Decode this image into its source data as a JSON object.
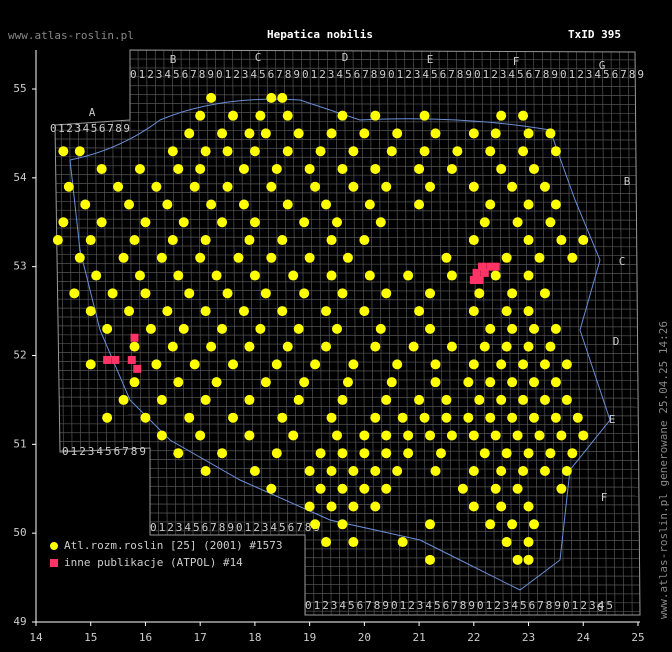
{
  "header": {
    "site": "www.atlas-roslin.pl",
    "title": "Hepatica nobilis",
    "taxon_id": "TxID 395",
    "footer": "www.atlas-roslin.pl generowane 25.04.25 14:26"
  },
  "grid_labels": {
    "letters": [
      "A",
      "B",
      "C",
      "D",
      "E",
      "F",
      "G"
    ],
    "digits": "0123456789",
    "digits_short": "012345"
  },
  "chart_data": {
    "type": "scatter",
    "xlim": [
      14,
      25
    ],
    "ylim": [
      49,
      55.5
    ],
    "xticks": [
      14,
      15,
      16,
      17,
      18,
      19,
      20,
      21,
      22,
      23,
      24,
      25
    ],
    "yticks": [
      49,
      50,
      51,
      52,
      53,
      54,
      55
    ],
    "series": [
      {
        "name": "Atl.rozm.roslin [25] (2001) #1573",
        "color": "#ffff00",
        "rows": [
          {
            "lat": 54.9,
            "lon": [
              17.2,
              18.3,
              18.5
            ]
          },
          {
            "lat": 54.7,
            "lon": [
              17.0,
              17.6,
              18.1,
              18.6,
              19.6,
              20.2,
              21.1,
              22.5,
              22.9
            ]
          },
          {
            "lat": 54.5,
            "lon": [
              16.8,
              17.4,
              17.9,
              18.2,
              18.8,
              19.4,
              20.0,
              20.6,
              21.3,
              22.0,
              22.4,
              23.0,
              23.4
            ]
          },
          {
            "lat": 54.3,
            "lon": [
              14.5,
              14.8,
              16.5,
              17.1,
              17.5,
              18.0,
              18.6,
              19.2,
              19.8,
              20.5,
              21.1,
              21.7,
              22.3,
              22.9,
              23.5
            ]
          },
          {
            "lat": 54.1,
            "lon": [
              15.2,
              15.9,
              16.6,
              17.0,
              17.8,
              18.4,
              19.0,
              19.6,
              20.2,
              21.0,
              21.6,
              22.5,
              23.1
            ]
          },
          {
            "lat": 53.9,
            "lon": [
              14.6,
              15.5,
              16.2,
              16.9,
              17.5,
              18.3,
              19.1,
              19.8,
              20.4,
              21.2,
              22.0,
              22.7,
              23.3
            ]
          },
          {
            "lat": 53.7,
            "lon": [
              14.9,
              15.7,
              16.4,
              17.2,
              17.8,
              18.6,
              19.3,
              20.1,
              21.0,
              22.3,
              23.0,
              23.5
            ]
          },
          {
            "lat": 53.5,
            "lon": [
              14.5,
              15.2,
              16.0,
              16.7,
              17.4,
              18.0,
              18.9,
              19.5,
              20.3,
              22.2,
              22.8,
              23.4
            ]
          },
          {
            "lat": 53.3,
            "lon": [
              14.4,
              15.0,
              15.8,
              16.5,
              17.1,
              17.9,
              18.5,
              19.4,
              20.0,
              22.0,
              23.0,
              23.6,
              24.0
            ]
          },
          {
            "lat": 53.1,
            "lon": [
              14.8,
              15.6,
              16.3,
              17.0,
              17.7,
              18.3,
              19.0,
              19.7,
              21.5,
              22.6,
              23.2,
              23.8
            ]
          },
          {
            "lat": 52.9,
            "lon": [
              15.1,
              15.9,
              16.6,
              17.3,
              18.0,
              18.7,
              19.4,
              20.1,
              20.8,
              21.6,
              22.4,
              23.0
            ]
          },
          {
            "lat": 52.7,
            "lon": [
              14.7,
              15.4,
              16.0,
              16.8,
              17.5,
              18.2,
              18.9,
              19.6,
              20.4,
              21.2,
              22.1,
              22.7,
              23.3
            ]
          },
          {
            "lat": 52.5,
            "lon": [
              15.0,
              15.7,
              16.4,
              17.1,
              17.8,
              18.5,
              19.3,
              20.0,
              21.0,
              22.0,
              22.6,
              23.0
            ]
          },
          {
            "lat": 52.3,
            "lon": [
              15.3,
              16.1,
              16.7,
              17.4,
              18.1,
              18.8,
              19.5,
              20.3,
              21.2,
              22.3,
              22.7,
              23.1,
              23.5
            ]
          },
          {
            "lat": 52.1,
            "lon": [
              15.8,
              16.5,
              17.2,
              17.9,
              18.6,
              19.3,
              20.2,
              20.9,
              21.6,
              22.2,
              22.6,
              23.0,
              23.4
            ]
          },
          {
            "lat": 51.9,
            "lon": [
              15.0,
              16.2,
              16.9,
              17.6,
              18.4,
              19.1,
              19.8,
              20.6,
              21.3,
              22.0,
              22.5,
              22.9,
              23.3,
              23.7
            ]
          },
          {
            "lat": 51.7,
            "lon": [
              15.8,
              16.6,
              17.3,
              18.2,
              18.9,
              19.7,
              20.5,
              21.3,
              21.9,
              22.3,
              22.7,
              23.1,
              23.5
            ]
          },
          {
            "lat": 51.5,
            "lon": [
              15.6,
              16.3,
              17.1,
              17.9,
              18.8,
              19.6,
              20.4,
              21.0,
              21.5,
              22.1,
              22.5,
              22.9,
              23.3,
              23.7
            ]
          },
          {
            "lat": 51.3,
            "lon": [
              15.3,
              16.0,
              16.8,
              17.6,
              18.5,
              19.4,
              20.2,
              20.7,
              21.1,
              21.5,
              21.9,
              22.3,
              22.7,
              23.1,
              23.5,
              23.9
            ]
          },
          {
            "lat": 51.1,
            "lon": [
              16.3,
              17.0,
              17.9,
              18.7,
              19.5,
              20.0,
              20.4,
              20.8,
              21.2,
              21.6,
              22.0,
              22.4,
              22.8,
              23.2,
              23.6,
              24.0
            ]
          },
          {
            "lat": 50.9,
            "lon": [
              16.6,
              17.4,
              18.4,
              19.2,
              19.6,
              20.0,
              20.4,
              20.8,
              21.4,
              22.2,
              22.6,
              23.0,
              23.4,
              23.8
            ]
          },
          {
            "lat": 50.7,
            "lon": [
              17.1,
              18.0,
              19.0,
              19.4,
              19.8,
              20.2,
              20.6,
              21.3,
              22.0,
              22.5,
              22.9,
              23.3,
              23.7
            ]
          },
          {
            "lat": 50.5,
            "lon": [
              18.3,
              19.2,
              19.6,
              20.0,
              20.4,
              21.8,
              22.4,
              22.8,
              23.6
            ]
          },
          {
            "lat": 50.3,
            "lon": [
              19.0,
              19.4,
              19.8,
              20.2,
              22.0,
              22.5,
              23.0
            ]
          },
          {
            "lat": 50.1,
            "lon": [
              19.1,
              19.6,
              21.2,
              22.3,
              22.7,
              23.1
            ]
          },
          {
            "lat": 49.9,
            "lon": [
              19.3,
              19.8,
              20.7,
              22.6,
              23.0
            ]
          },
          {
            "lat": 49.7,
            "lon": [
              21.2,
              22.8,
              23.0
            ]
          }
        ]
      },
      {
        "name": "inne publikacje (ATPOL) #14",
        "color": "#ff3366",
        "rows": [
          {
            "lat": 53.0,
            "lon": [
              22.15,
              22.3,
              22.4
            ]
          },
          {
            "lat": 52.93,
            "lon": [
              22.05,
              22.2
            ]
          },
          {
            "lat": 52.85,
            "lon": [
              22.0,
              22.1
            ]
          },
          {
            "lat": 52.2,
            "lon": [
              15.8
            ]
          },
          {
            "lat": 51.95,
            "lon": [
              15.3,
              15.45,
              15.75
            ]
          },
          {
            "lat": 51.85,
            "lon": [
              15.85
            ]
          }
        ]
      }
    ]
  }
}
